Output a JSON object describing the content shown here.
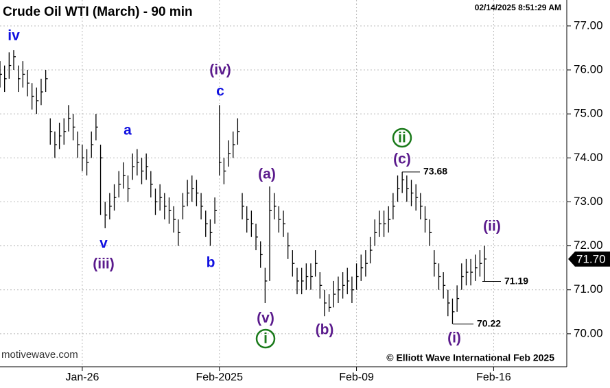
{
  "chart_data": {
    "type": "ohlc",
    "title": "Crude Oil WTI (March) - 90 min",
    "timestamp": "02/14/2025 8:51:29 AM",
    "source": "motivewave.com",
    "copyright": "© Elliott Wave International Feb 2025",
    "color": "#000000",
    "grid": true,
    "ylim": [
      69.25,
      77.59
    ],
    "yticks": [
      {
        "value": 70,
        "label": "70.00"
      },
      {
        "value": 71,
        "label": "71.00"
      },
      {
        "value": 72,
        "label": "72.00"
      },
      {
        "value": 73,
        "label": "73.00"
      },
      {
        "value": 74,
        "label": "74.00"
      },
      {
        "value": 75,
        "label": "75.00"
      },
      {
        "value": 76,
        "label": "76.00"
      },
      {
        "value": 77,
        "label": "77.00"
      }
    ],
    "xlim": [
      0,
      124
    ],
    "xticks": [
      {
        "value": 18,
        "label": "Jan-26"
      },
      {
        "value": 48,
        "label": "Feb-2025"
      },
      {
        "value": 78,
        "label": "Feb-09"
      },
      {
        "value": 108,
        "label": "Feb-16"
      }
    ],
    "high": [
      76.2,
      76.1,
      76.4,
      76.45,
      76.1,
      76.2,
      76.0,
      75.7,
      75.6,
      75.8,
      76.0,
      74.9,
      74.6,
      74.8,
      74.9,
      75.2,
      75.0,
      74.6,
      74.3,
      74.2,
      74.6,
      75.0,
      74.3,
      73.0,
      73.2,
      73.4,
      73.7,
      73.9,
      73.6,
      74.1,
      74.2,
      74.0,
      74.1,
      73.7,
      73.3,
      73.4,
      73.2,
      73.1,
      72.9,
      72.6,
      73.2,
      73.5,
      73.6,
      73.5,
      73.2,
      72.8,
      72.6,
      73.1,
      75.2,
      74.0,
      74.4,
      74.6,
      74.9,
      73.2,
      72.9,
      72.8,
      72.5,
      72.1,
      71.5,
      73.35,
      73.2,
      72.9,
      72.8,
      72.3,
      71.9,
      71.5,
      71.5,
      71.6,
      71.6,
      71.9,
      71.4,
      71.0,
      70.9,
      71.2,
      71.3,
      71.4,
      71.5,
      71.3,
      71.6,
      71.8,
      71.9,
      72.2,
      72.6,
      72.8,
      72.8,
      72.9,
      73.2,
      73.6,
      73.68,
      73.6,
      73.5,
      73.4,
      73.2,
      72.9,
      72.6,
      71.9,
      71.6,
      71.4,
      71.0,
      70.8,
      71.1,
      71.6,
      71.7,
      71.7,
      71.8,
      71.9,
      72.0
    ],
    "low": [
      75.6,
      75.5,
      75.8,
      76.0,
      75.5,
      75.6,
      75.4,
      75.1,
      75.0,
      75.2,
      75.5,
      74.3,
      74.0,
      74.2,
      74.3,
      74.6,
      74.4,
      74.0,
      73.7,
      73.6,
      74.0,
      74.4,
      72.7,
      72.4,
      72.6,
      72.8,
      73.1,
      73.3,
      73.0,
      73.5,
      73.6,
      73.4,
      73.5,
      73.1,
      72.7,
      72.8,
      72.6,
      72.5,
      72.3,
      72.0,
      72.6,
      72.9,
      73.0,
      72.9,
      72.6,
      72.2,
      72.0,
      72.5,
      73.6,
      73.4,
      73.8,
      74.0,
      74.3,
      72.6,
      72.3,
      72.2,
      71.9,
      71.5,
      70.7,
      71.2,
      72.6,
      72.3,
      72.2,
      71.7,
      71.3,
      70.9,
      70.9,
      71.0,
      71.0,
      71.3,
      70.8,
      70.4,
      70.5,
      70.6,
      70.7,
      70.8,
      70.9,
      70.7,
      71.0,
      71.2,
      71.3,
      71.6,
      72.0,
      72.2,
      72.2,
      72.3,
      72.6,
      73.0,
      73.2,
      73.0,
      72.9,
      72.8,
      72.6,
      72.3,
      72.0,
      71.3,
      71.0,
      70.8,
      70.4,
      70.22,
      70.5,
      71.0,
      71.1,
      71.1,
      71.2,
      71.3,
      71.19
    ],
    "close": [
      75.9,
      75.8,
      76.1,
      76.3,
      75.8,
      75.9,
      75.7,
      75.4,
      75.3,
      75.5,
      75.8,
      74.6,
      74.3,
      74.5,
      74.6,
      74.9,
      74.7,
      74.3,
      74.0,
      73.9,
      74.3,
      74.7,
      74.0,
      72.7,
      72.9,
      73.1,
      73.4,
      73.6,
      73.3,
      73.8,
      73.9,
      73.7,
      73.8,
      73.4,
      73.0,
      73.1,
      72.9,
      72.8,
      72.6,
      72.3,
      72.9,
      73.2,
      73.3,
      73.2,
      72.9,
      72.5,
      72.3,
      72.8,
      73.9,
      73.7,
      74.1,
      74.3,
      74.6,
      72.9,
      72.6,
      72.5,
      72.2,
      71.8,
      71.2,
      72.8,
      72.9,
      72.6,
      72.5,
      72.0,
      71.6,
      71.2,
      71.2,
      71.3,
      71.3,
      71.6,
      71.1,
      70.7,
      70.6,
      70.9,
      71.0,
      71.1,
      71.2,
      71.0,
      71.3,
      71.5,
      71.6,
      71.9,
      72.3,
      72.5,
      72.5,
      72.6,
      72.9,
      73.3,
      73.5,
      73.3,
      73.2,
      73.1,
      72.9,
      72.6,
      72.3,
      71.6,
      71.3,
      71.1,
      70.7,
      70.5,
      70.8,
      71.3,
      71.4,
      71.4,
      71.5,
      71.6,
      71.7
    ],
    "annotations": [
      {
        "text": "iv",
        "color": "#1010e0"
      },
      {
        "text": "v",
        "color": "#1010e0"
      },
      {
        "text": "(iii)",
        "color": "#5a1a8c"
      },
      {
        "text": "a",
        "color": "#1010e0"
      },
      {
        "text": "b",
        "color": "#1010e0"
      },
      {
        "text": "c",
        "color": "#1010e0"
      },
      {
        "text": "(iv)",
        "color": "#5a1a8c"
      },
      {
        "text": "(a)",
        "color": "#5a1a8c"
      },
      {
        "text": "(v)",
        "color": "#5a1a8c"
      },
      {
        "text": "i",
        "color": "#1a7a1a",
        "circled": true
      },
      {
        "text": "(b)",
        "color": "#5a1a8c"
      },
      {
        "text": "ii",
        "color": "#1a7a1a",
        "circled": true
      },
      {
        "text": "(c)",
        "color": "#5a1a8c"
      },
      {
        "text": "(i)",
        "color": "#5a1a8c"
      },
      {
        "text": "(ii)",
        "color": "#5a1a8c"
      }
    ],
    "price_labels": [
      73.68,
      70.22,
      71.19
    ],
    "last_price": {
      "value": 71.7,
      "label": "71.70"
    }
  }
}
